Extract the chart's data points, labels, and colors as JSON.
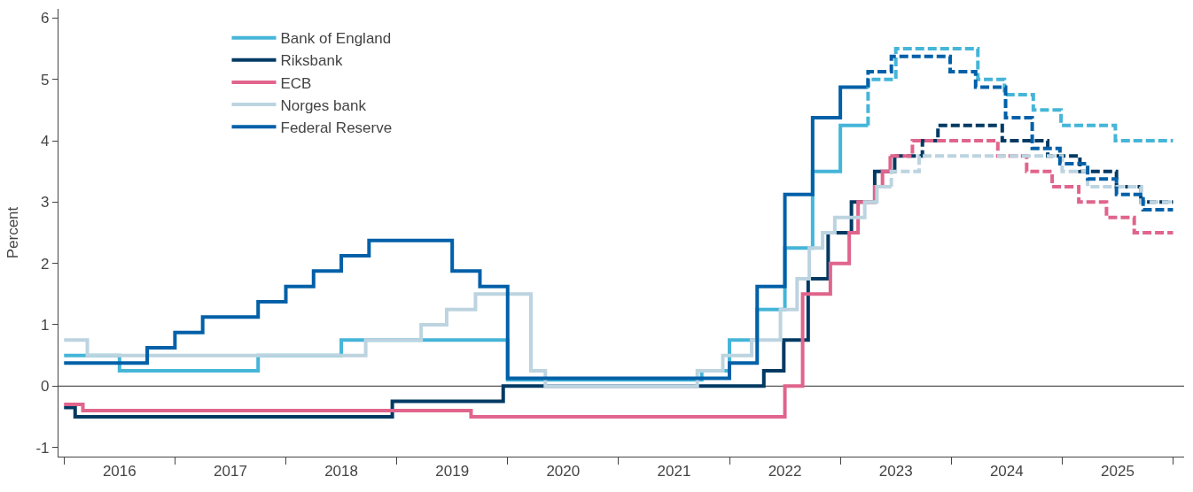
{
  "chart_data": {
    "type": "step",
    "ylabel": "Percent",
    "xlim": [
      2015.95,
      2026.1
    ],
    "ylim": [
      -1.15,
      6.15
    ],
    "xticks": [
      {
        "value": 2016,
        "label": null
      },
      {
        "value": 2016.5,
        "label": "2016"
      },
      {
        "value": 2017,
        "label": null
      },
      {
        "value": 2017.5,
        "label": "2017"
      },
      {
        "value": 2018,
        "label": null
      },
      {
        "value": 2018.5,
        "label": "2018"
      },
      {
        "value": 2019,
        "label": null
      },
      {
        "value": 2019.5,
        "label": "2019"
      },
      {
        "value": 2020,
        "label": null
      },
      {
        "value": 2020.5,
        "label": "2020"
      },
      {
        "value": 2021,
        "label": null
      },
      {
        "value": 2021.5,
        "label": "2021"
      },
      {
        "value": 2022,
        "label": null
      },
      {
        "value": 2022.5,
        "label": "2022"
      },
      {
        "value": 2023,
        "label": null
      },
      {
        "value": 2023.5,
        "label": "2023"
      },
      {
        "value": 2024,
        "label": null
      },
      {
        "value": 2024.5,
        "label": "2024"
      },
      {
        "value": 2025,
        "label": null
      },
      {
        "value": 2025.5,
        "label": "2025"
      },
      {
        "value": 2026,
        "label": null
      }
    ],
    "yticks": [
      -1,
      0,
      1,
      2,
      3,
      4,
      5,
      6
    ],
    "grid": false,
    "legend": "top left",
    "ref_lines": [
      {
        "axis": "y",
        "value": 0,
        "color": "#555555"
      }
    ],
    "series": [
      {
        "name": "Bank of England",
        "color": "#45b5d8",
        "line_style": "solid",
        "x": [
          2016.0,
          2016.5,
          2017.75,
          2018.5,
          2020.0,
          2021.75,
          2022.0,
          2022.25,
          2022.5,
          2022.75,
          2023.0,
          2023.25
        ],
        "values": [
          0.5,
          0.25,
          0.5,
          0.75,
          0.1,
          0.25,
          0.75,
          1.25,
          2.25,
          3.5,
          4.25,
          4.25
        ]
      },
      {
        "name": "Riksbank",
        "color": "#003a63",
        "line_style": "solid",
        "x": [
          2016.0,
          2016.1,
          2018.96,
          2019.96,
          2022.31,
          2022.49,
          2022.71,
          2022.89,
          2023.1,
          2023.31,
          2023.49
        ],
        "values": [
          -0.35,
          -0.5,
          -0.25,
          0,
          0.25,
          0.75,
          1.75,
          2.5,
          3.0,
          3.5,
          3.75
        ]
      },
      {
        "name": "ECB",
        "color": "#e0648c",
        "line_style": "solid",
        "x": [
          2016.0,
          2016.17,
          2019.67,
          2022.5,
          2022.66,
          2022.91,
          2023.08,
          2023.16,
          2023.31,
          2023.38,
          2023.45
        ],
        "values": [
          -0.3,
          -0.4,
          -0.5,
          0,
          1.5,
          2.0,
          2.5,
          3.0,
          3.25,
          3.5,
          3.75
        ]
      },
      {
        "name": "Norges bank",
        "color": "#bcd4e0",
        "line_style": "solid",
        "x": [
          2016.0,
          2016.21,
          2018.72,
          2019.22,
          2019.45,
          2019.71,
          2020.21,
          2020.34,
          2021.71,
          2021.94,
          2022.2,
          2022.46,
          2022.61,
          2022.72,
          2022.84,
          2022.95,
          2023.22,
          2023.33,
          2023.46
        ],
        "values": [
          0.75,
          0.5,
          0.75,
          1.0,
          1.25,
          1.5,
          0.25,
          0,
          0.25,
          0.5,
          0.75,
          1.25,
          1.75,
          2.25,
          2.5,
          2.75,
          3.0,
          3.25,
          3.25
        ]
      },
      {
        "name": "Federal Reserve",
        "color": "#0060a8",
        "line_style": "solid",
        "x": [
          2016.0,
          2016.75,
          2017.0,
          2017.25,
          2017.75,
          2018.0,
          2018.25,
          2018.5,
          2018.75,
          2019.5,
          2019.75,
          2020.0,
          2022.0,
          2022.25,
          2022.5,
          2022.75,
          2023.0,
          2023.25
        ],
        "values": [
          0.375,
          0.625,
          0.875,
          1.125,
          1.375,
          1.625,
          1.875,
          2.125,
          2.375,
          1.875,
          1.625,
          0.125,
          0.375,
          1.625,
          3.125,
          4.375,
          4.875,
          4.875
        ]
      },
      {
        "color": "#45b5d8",
        "line_style": "dashed",
        "x": [
          2023.25,
          2023.25,
          2023.5,
          2024.24,
          2024.48,
          2024.74,
          2024.99,
          2025.48,
          2026.0
        ],
        "values": [
          4.25,
          5.0,
          5.5,
          5.0,
          4.75,
          4.5,
          4.25,
          4.0,
          4.0
        ]
      },
      {
        "color": "#003a63",
        "line_style": "dashed",
        "x": [
          2023.49,
          2023.74,
          2023.88,
          2024.46,
          2024.87,
          2025.16,
          2025.49,
          2025.71,
          2026.0
        ],
        "values": [
          3.75,
          4.0,
          4.25,
          4.0,
          3.75,
          3.5,
          3.25,
          3.0,
          3.0
        ]
      },
      {
        "color": "#e0648c",
        "line_style": "dashed",
        "x": [
          2023.45,
          2023.65,
          2024.42,
          2024.68,
          2024.91,
          2025.15,
          2025.4,
          2025.65,
          2026.0
        ],
        "values": [
          3.75,
          4.0,
          3.75,
          3.5,
          3.25,
          3.0,
          2.75,
          2.5,
          2.5
        ]
      },
      {
        "color": "#bcd4e0",
        "line_style": "dashed",
        "x": [
          2023.46,
          2023.46,
          2023.71,
          2025.0,
          2025.23,
          2025.71,
          2026.0
        ],
        "values": [
          3.25,
          3.5,
          3.75,
          3.5,
          3.25,
          3.0,
          3.0
        ]
      },
      {
        "color": "#0060a8",
        "line_style": "dashed",
        "x": [
          2023.25,
          2023.25,
          2023.46,
          2023.99,
          2024.22,
          2024.49,
          2024.73,
          2024.98,
          2025.23,
          2025.49,
          2025.73,
          2026.0
        ],
        "values": [
          4.875,
          5.125,
          5.375,
          5.125,
          4.875,
          4.375,
          3.875,
          3.625,
          3.375,
          3.125,
          2.875,
          2.875
        ]
      }
    ]
  }
}
